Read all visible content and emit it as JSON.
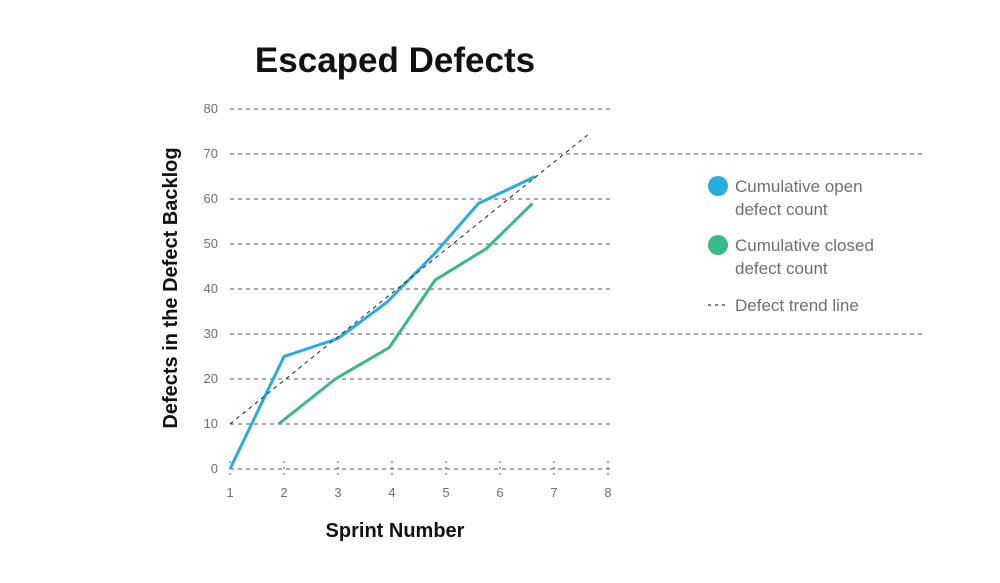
{
  "chart_data": {
    "type": "line",
    "title": "Escaped Defects",
    "xlabel": "Sprint Number",
    "ylabel": "Defects in the Defect Backlog",
    "xlim": [
      1,
      8
    ],
    "ylim": [
      0,
      80
    ],
    "x_ticks": [
      "1",
      "2",
      "3",
      "4",
      "5",
      "6",
      "7",
      "8"
    ],
    "y_ticks": [
      "0",
      "10",
      "20",
      "30",
      "40",
      "50",
      "60",
      "70",
      "80"
    ],
    "grid": "horizontal dashed",
    "legend_position": "right",
    "series": [
      {
        "name": "Cumulative open defect count",
        "color": "#29abdb",
        "points": [
          [
            1,
            0
          ],
          [
            2,
            25
          ],
          [
            3,
            29
          ],
          [
            3.9,
            37
          ],
          [
            4.8,
            48
          ],
          [
            5.6,
            59
          ],
          [
            6.65,
            65
          ]
        ]
      },
      {
        "name": "Cumulative closed defect count",
        "color": "#3bb887",
        "points": [
          [
            1.9,
            10
          ],
          [
            2.95,
            20
          ],
          [
            3.95,
            27
          ],
          [
            4.8,
            42
          ],
          [
            5.75,
            49
          ],
          [
            6.6,
            59
          ]
        ]
      },
      {
        "name": "Defect trend line",
        "color": "#222222",
        "style": "dashed",
        "points": [
          [
            1,
            10
          ],
          [
            7.65,
            74.5
          ]
        ]
      }
    ],
    "legend": [
      {
        "line1": "Cumulative open",
        "line2": "defect count",
        "marker": "circle",
        "color": "#29abdb"
      },
      {
        "line1": "Cumulative closed",
        "line2": "defect count",
        "marker": "circle",
        "color": "#3bb887"
      },
      {
        "line1": "Defect trend line",
        "marker": "dashed-line",
        "color": "#555555"
      }
    ]
  }
}
